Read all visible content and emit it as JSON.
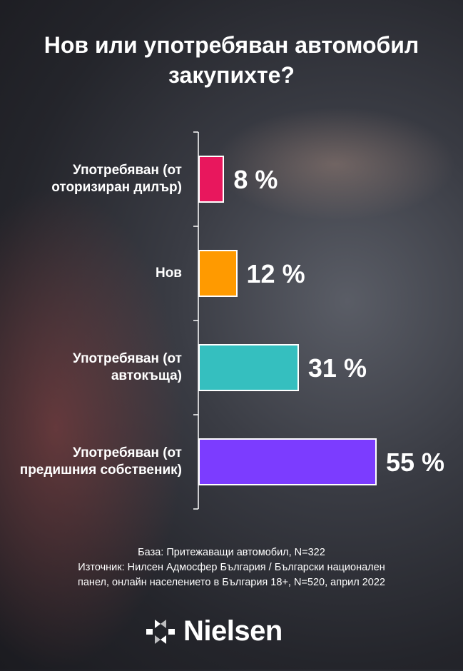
{
  "chart_data": {
    "type": "bar",
    "orientation": "horizontal",
    "title": "Нов или употребяван автомобил закупихте?",
    "categories": [
      "Употребяван (от оторизиран дилър)",
      "Нов",
      "Употребяван (от автокъща)",
      "Употребяван (от предишния собственик)"
    ],
    "values": [
      8,
      12,
      31,
      55
    ],
    "value_labels": [
      "8 %",
      "12 %",
      "31 %",
      "55 %"
    ],
    "colors": [
      "#e8175d",
      "#ff9a00",
      "#35bfbf",
      "#7c3cff"
    ]
  },
  "notes": [
    "База: Притежаващи автомобил, N=322",
    "Източник: Нилсен Адмосфер България / Български национален",
    "панел, онлайн населението в България 18+, N=520, април 2022"
  ],
  "logo": "Nielsen"
}
